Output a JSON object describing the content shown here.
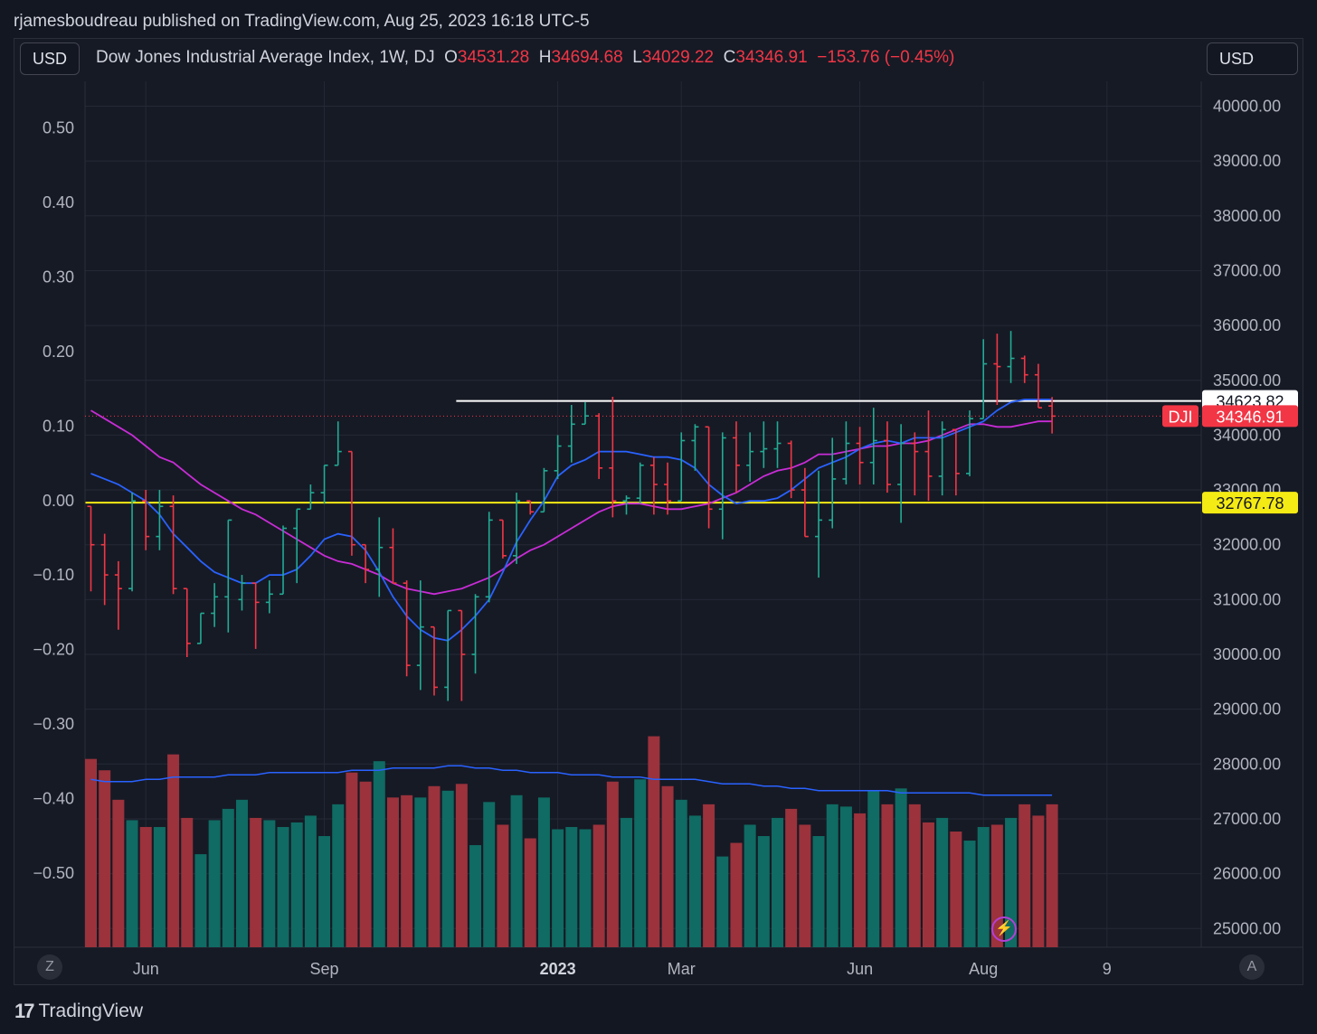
{
  "header": {
    "published": "rjamesboudreau published on TradingView.com, Aug 25, 2023 16:18 UTC-5"
  },
  "toolbar": {
    "currency_left": "USD",
    "currency_right": "USD"
  },
  "legend": {
    "symbol": "Dow Jones Industrial Average Index, 1W, DJ",
    "o_label": "O",
    "o_value": "34531.28",
    "h_label": "H",
    "h_value": "34694.68",
    "l_label": "L",
    "l_value": "34029.22",
    "c_label": "C",
    "c_value": "34346.91",
    "change": "−153.76 (−0.45%)"
  },
  "footer": {
    "brand": "TradingView",
    "z_button": "Z",
    "a_button": "A"
  },
  "colors": {
    "up": "#22ab94",
    "down": "#f23645",
    "vol_up": "#0f6b63",
    "vol_down": "#9b323c",
    "ma_fast": "#2962ff",
    "ma_slow": "#c82cd6",
    "resistance": "#ffffff",
    "support": "#f5eb14",
    "background": "#131722"
  },
  "chart_data": {
    "type": "ohlc_bar",
    "symbol": "DJI",
    "interval": "1W",
    "left_axis": {
      "ticks": [
        "0.50",
        "0.40",
        "0.30",
        "0.20",
        "0.10",
        "0.00",
        "−0.10",
        "−0.20",
        "−0.30",
        "−0.40",
        "−0.50"
      ],
      "values": [
        0.5,
        0.4,
        0.3,
        0.2,
        0.1,
        0.0,
        -0.1,
        -0.2,
        -0.3,
        -0.4,
        -0.5
      ]
    },
    "right_axis": {
      "ticks": [
        "40000.00",
        "39000.00",
        "38000.00",
        "37000.00",
        "36000.00",
        "35000.00",
        "34000.00",
        "33000.00",
        "32000.00",
        "31000.00",
        "30000.00",
        "29000.00",
        "28000.00",
        "27000.00",
        "26000.00",
        "25000.00"
      ],
      "values": [
        40000,
        39000,
        38000,
        37000,
        36000,
        35000,
        34000,
        33000,
        32000,
        31000,
        30000,
        29000,
        28000,
        27000,
        26000,
        25000
      ]
    },
    "x_axis": {
      "labels": [
        "Jun",
        "Sep",
        "2023",
        "Mar",
        "Jun",
        "Aug",
        "9"
      ],
      "bar_index": [
        4,
        17,
        34,
        43,
        56,
        65,
        74
      ]
    },
    "price_labels": [
      {
        "name": "resistance",
        "text": "34623.82",
        "value": 34623.82
      },
      {
        "name": "last",
        "tag": "DJI",
        "text": "34346.91",
        "value": 34346.91
      },
      {
        "name": "support",
        "text": "32767.78",
        "value": 32767.78
      }
    ],
    "horizontal_lines": [
      {
        "name": "resistance",
        "value": 34623.82,
        "from_bar": 27
      },
      {
        "name": "support",
        "value": 32767.78,
        "from_bar": 0
      }
    ],
    "bars": [
      [
        32700,
        32700,
        31150,
        32000
      ],
      [
        32000,
        32200,
        30900,
        31450
      ],
      [
        31450,
        31700,
        30450,
        31200
      ],
      [
        31200,
        32950,
        31150,
        32800
      ],
      [
        32800,
        33000,
        31900,
        32150
      ],
      [
        32150,
        33000,
        31900,
        32700
      ],
      [
        32700,
        32900,
        31100,
        31200
      ],
      [
        31200,
        31150,
        29950,
        30200
      ],
      [
        30200,
        30750,
        30500,
        30750
      ],
      [
        30750,
        31300,
        30500,
        31050
      ],
      [
        31050,
        32450,
        30400,
        32450
      ],
      [
        31000,
        31450,
        30800,
        31300
      ],
      [
        31300,
        31200,
        30100,
        30950
      ],
      [
        30950,
        31350,
        30750,
        31100
      ],
      [
        31100,
        32350,
        31500,
        32300
      ],
      [
        32300,
        32650,
        31300,
        32650
      ],
      [
        32650,
        33100,
        32700,
        32950
      ],
      [
        32950,
        33450,
        32750,
        33450
      ],
      [
        33450,
        34250,
        33600,
        33700
      ],
      [
        33700,
        33250,
        31800,
        32000
      ],
      [
        32000,
        31850,
        31300,
        31550
      ],
      [
        31550,
        32500,
        31050,
        31950
      ],
      [
        31950,
        32300,
        31500,
        31300
      ],
      [
        31300,
        31350,
        29600,
        29800
      ],
      [
        29800,
        31350,
        29350,
        30500
      ],
      [
        30500,
        29900,
        29250,
        29400
      ],
      [
        29400,
        29400,
        29150,
        30800
      ],
      [
        30800,
        30550,
        29150,
        30000
      ],
      [
        30000,
        31100,
        29650,
        31050
      ],
      [
        31050,
        32600,
        30950,
        32450
      ],
      [
        32450,
        32350,
        31750,
        31800
      ],
      [
        31800,
        32950,
        31650,
        32800
      ],
      [
        32800,
        32800,
        32550,
        32600
      ],
      [
        32600,
        33400,
        32600,
        33350
      ],
      [
        33350,
        34000,
        33200,
        33800
      ],
      [
        33800,
        34550,
        33500,
        34200
      ],
      [
        34200,
        34600,
        34200,
        34350
      ],
      [
        34350,
        34400,
        33200,
        33400
      ],
      [
        33400,
        34700,
        32500,
        32800
      ],
      [
        32800,
        32900,
        32550,
        32850
      ],
      [
        32850,
        33500,
        32750,
        33450
      ],
      [
        33450,
        33600,
        32550,
        33100
      ],
      [
        33100,
        33500,
        32550,
        32800
      ],
      [
        32800,
        34050,
        33000,
        33900
      ],
      [
        33900,
        34200,
        33350,
        34150
      ],
      [
        34150,
        33700,
        32300,
        32650
      ],
      [
        32650,
        34050,
        32100,
        33950
      ],
      [
        33950,
        34250,
        32950,
        33450
      ],
      [
        33450,
        34050,
        33150,
        33700
      ],
      [
        33700,
        34250,
        33400,
        33750
      ],
      [
        33750,
        34250,
        33400,
        33850
      ],
      [
        33850,
        33900,
        32850,
        33000
      ],
      [
        33000,
        33400,
        32500,
        32150
      ],
      [
        32150,
        33350,
        31400,
        32450
      ],
      [
        32450,
        33950,
        32300,
        33200
      ],
      [
        33200,
        34250,
        33100,
        33850
      ],
      [
        33850,
        34150,
        33100,
        33500
      ],
      [
        33500,
        34500,
        33100,
        33900
      ],
      [
        33900,
        34250,
        32950,
        33100
      ],
      [
        33100,
        34200,
        32400,
        33850
      ],
      [
        33850,
        34050,
        32900,
        33700
      ],
      [
        33700,
        34450,
        32800,
        33250
      ],
      [
        33250,
        34250,
        32900,
        34100
      ],
      [
        34100,
        34050,
        32900,
        33300
      ],
      [
        33300,
        34450,
        33250,
        34300
      ],
      [
        34300,
        35750,
        34600,
        35300
      ],
      [
        35300,
        35850,
        34550,
        35250
      ],
      [
        35250,
        35900,
        34950,
        35400
      ],
      [
        35400,
        35450,
        34950,
        35100
      ],
      [
        35100,
        35300,
        34650,
        34500
      ],
      [
        34531.28,
        34694.68,
        34029.22,
        34346.91
      ]
    ],
    "volume_rel": [
      0.83,
      0.78,
      0.65,
      0.56,
      0.53,
      0.53,
      0.85,
      0.57,
      0.41,
      0.56,
      0.61,
      0.65,
      0.57,
      0.56,
      0.53,
      0.55,
      0.58,
      0.49,
      0.63,
      0.77,
      0.73,
      0.82,
      0.66,
      0.67,
      0.66,
      0.71,
      0.69,
      0.72,
      0.45,
      0.64,
      0.54,
      0.67,
      0.48,
      0.66,
      0.52,
      0.53,
      0.52,
      0.54,
      0.73,
      0.57,
      0.74,
      0.93,
      0.71,
      0.65,
      0.58,
      0.63,
      0.4,
      0.46,
      0.54,
      0.49,
      0.57,
      0.61,
      0.54,
      0.49,
      0.63,
      0.62,
      0.59,
      0.69,
      0.63,
      0.7,
      0.63,
      0.55,
      0.57,
      0.51,
      0.47,
      0.53,
      0.54,
      0.57,
      0.63,
      0.58,
      0.63
    ],
    "ma_fast": [
      33300,
      33200,
      33100,
      32950,
      32800,
      32550,
      32200,
      31950,
      31700,
      31500,
      31400,
      31300,
      31300,
      31450,
      31450,
      31550,
      31800,
      32100,
      32200,
      32150,
      31900,
      31500,
      31050,
      30700,
      30450,
      30300,
      30250,
      30450,
      30700,
      31000,
      31500,
      32050,
      32450,
      32800,
      33250,
      33450,
      33550,
      33700,
      33700,
      33700,
      33650,
      33600,
      33600,
      33550,
      33400,
      33100,
      32900,
      32750,
      32800,
      32800,
      32850,
      33000,
      33200,
      33400,
      33500,
      33600,
      33750,
      33850,
      33900,
      33850,
      33950,
      33950,
      33950,
      34050,
      34150,
      34250,
      34450,
      34600,
      34650,
      34650,
      34650
    ],
    "ma_slow": [
      34450,
      34300,
      34150,
      34000,
      33800,
      33600,
      33500,
      33300,
      33100,
      32950,
      32800,
      32650,
      32550,
      32400,
      32250,
      32100,
      31950,
      31800,
      31700,
      31650,
      31550,
      31450,
      31300,
      31200,
      31150,
      31100,
      31150,
      31200,
      31300,
      31400,
      31550,
      31750,
      31900,
      32000,
      32150,
      32300,
      32450,
      32600,
      32700,
      32750,
      32750,
      32700,
      32650,
      32650,
      32700,
      32750,
      32850,
      32950,
      33100,
      33250,
      33350,
      33400,
      33500,
      33650,
      33650,
      33700,
      33750,
      33800,
      33800,
      33850,
      33850,
      33900,
      34000,
      34100,
      34200,
      34200,
      34150,
      34150,
      34200,
      34250,
      34250
    ],
    "volume_ma_rel": [
      0.74,
      0.73,
      0.73,
      0.73,
      0.74,
      0.74,
      0.75,
      0.75,
      0.75,
      0.75,
      0.76,
      0.76,
      0.76,
      0.77,
      0.77,
      0.77,
      0.77,
      0.77,
      0.77,
      0.78,
      0.78,
      0.78,
      0.79,
      0.79,
      0.79,
      0.79,
      0.8,
      0.8,
      0.79,
      0.79,
      0.78,
      0.78,
      0.77,
      0.77,
      0.77,
      0.76,
      0.76,
      0.76,
      0.75,
      0.75,
      0.75,
      0.74,
      0.74,
      0.74,
      0.74,
      0.73,
      0.72,
      0.72,
      0.72,
      0.71,
      0.71,
      0.7,
      0.7,
      0.69,
      0.69,
      0.69,
      0.69,
      0.69,
      0.69,
      0.68,
      0.68,
      0.68,
      0.68,
      0.68,
      0.68,
      0.67,
      0.67,
      0.67,
      0.67,
      0.67,
      0.67
    ]
  }
}
